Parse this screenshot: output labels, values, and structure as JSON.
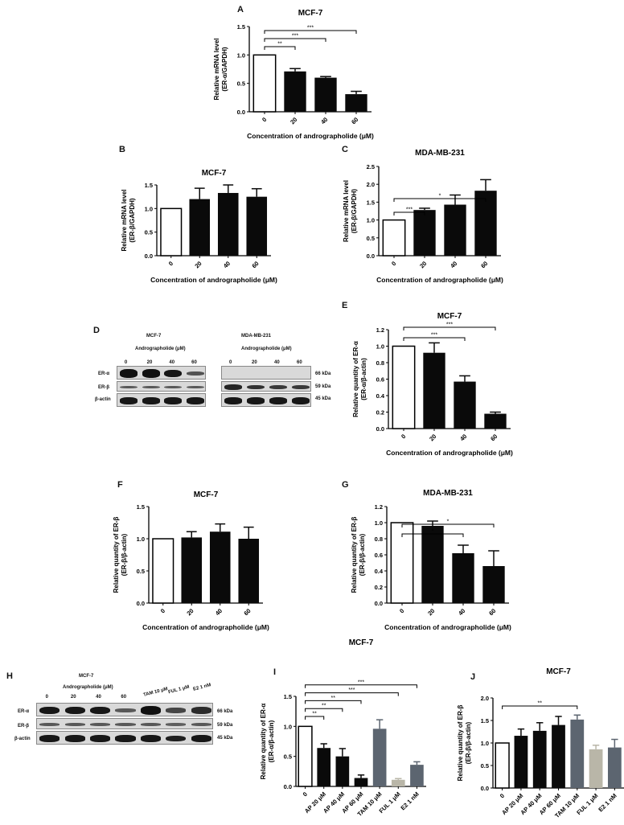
{
  "panel_letters": {
    "A": "A",
    "B": "B",
    "C": "C",
    "D": "D",
    "E": "E",
    "F": "F",
    "G": "G",
    "H": "H",
    "I": "I",
    "J": "J"
  },
  "colors": {
    "white": "#ffffff",
    "black": "#0a0a0a",
    "gray": "#5c6570",
    "light_gray": "#b9b6a8"
  },
  "chart_data": [
    {
      "id": "A",
      "type": "bar",
      "title": "MCF-7",
      "ylabel": [
        "Relative mRNA level",
        "(ER-α/GAPDH)"
      ],
      "xlabel": "Concentration of andrographolide (μM)",
      "categories": [
        "0",
        "20",
        "40",
        "60"
      ],
      "values": [
        1.0,
        0.71,
        0.6,
        0.31
      ],
      "errors": [
        0,
        0.05,
        0.02,
        0.05
      ],
      "fills": [
        "white",
        "black",
        "black",
        "black"
      ],
      "ylim": [
        0,
        1.5
      ],
      "yticks": [
        "0.0",
        "0.5",
        "1.0",
        "1.5"
      ],
      "significance": [
        {
          "from": 0,
          "to": 1,
          "label": "**"
        },
        {
          "from": 0,
          "to": 2,
          "label": "***"
        },
        {
          "from": 0,
          "to": 3,
          "label": "***"
        }
      ]
    },
    {
      "id": "B",
      "type": "bar",
      "title": "MCF-7",
      "ylabel": [
        "Relative mRNA level",
        "(ER-β/GAPDH)"
      ],
      "xlabel": "Concentration of andrographolide (μM)",
      "categories": [
        "0",
        "20",
        "40",
        "60"
      ],
      "values": [
        1.0,
        1.2,
        1.33,
        1.25
      ],
      "errors": [
        0,
        0.23,
        0.17,
        0.17
      ],
      "fills": [
        "white",
        "black",
        "black",
        "black"
      ],
      "ylim": [
        0,
        1.5
      ],
      "yticks": [
        "0.0",
        "0.5",
        "1.0",
        "1.5"
      ],
      "significance": []
    },
    {
      "id": "C",
      "type": "bar",
      "title": "MDA-MB-231",
      "ylabel": [
        "Relative mRNA level",
        "(ER-β/GAPDH)"
      ],
      "xlabel": "Concentration of andrographolide (μM)",
      "categories": [
        "0",
        "20",
        "40",
        "60"
      ],
      "values": [
        1.0,
        1.28,
        1.43,
        1.82
      ],
      "errors": [
        0,
        0.05,
        0.27,
        0.31
      ],
      "fills": [
        "white",
        "black",
        "black",
        "black"
      ],
      "ylim": [
        0,
        2.5
      ],
      "yticks": [
        "0.0",
        "0.5",
        "1.0",
        "1.5",
        "2.0",
        "2.5"
      ],
      "significance": [
        {
          "from": 0,
          "to": 1,
          "label": "***"
        },
        {
          "from": 0,
          "to": 3,
          "label": "*"
        }
      ]
    },
    {
      "id": "E",
      "type": "bar",
      "title": "MCF-7",
      "ylabel": [
        "Relative quantity of ER-α",
        "(ER-α/β-actin)"
      ],
      "xlabel": "Concentration of andrographolide (μM)",
      "categories": [
        "0",
        "20",
        "40",
        "60"
      ],
      "values": [
        1.0,
        0.92,
        0.57,
        0.18
      ],
      "errors": [
        0,
        0.12,
        0.07,
        0.02
      ],
      "fills": [
        "white",
        "black",
        "black",
        "black"
      ],
      "ylim": [
        0,
        1.2
      ],
      "yticks": [
        "0.0",
        "0.2",
        "0.4",
        "0.6",
        "0.8",
        "1.0",
        "1.2"
      ],
      "significance": [
        {
          "from": 0,
          "to": 2,
          "label": "***"
        },
        {
          "from": 0,
          "to": 3,
          "label": "***"
        }
      ]
    },
    {
      "id": "F",
      "type": "bar",
      "title": "MCF-7",
      "ylabel": [
        "Relative quantity of ER-β",
        "(ER-β/β-actin)"
      ],
      "xlabel": "Concentration of andrographolide (μM)",
      "categories": [
        "0",
        "20",
        "40",
        "60"
      ],
      "values": [
        1.0,
        1.02,
        1.11,
        1.0
      ],
      "errors": [
        0,
        0.09,
        0.12,
        0.18
      ],
      "fills": [
        "white",
        "black",
        "black",
        "black"
      ],
      "ylim": [
        0,
        1.5
      ],
      "yticks": [
        "0.0",
        "0.5",
        "1.0",
        "1.5"
      ],
      "significance": []
    },
    {
      "id": "G",
      "type": "bar",
      "title": "MDA-MB-231",
      "ylabel": [
        "Relative quantity of ER-β",
        "(ER-β/β-actin)"
      ],
      "xlabel": "Concentration of andrographolide (μM)",
      "categories": [
        "0",
        "20",
        "40",
        "60"
      ],
      "values": [
        1.0,
        0.96,
        0.62,
        0.46
      ],
      "errors": [
        0,
        0.06,
        0.1,
        0.19
      ],
      "fills": [
        "white",
        "black",
        "black",
        "black"
      ],
      "ylim": [
        0,
        1.2
      ],
      "yticks": [
        "0.0",
        "0.2",
        "0.4",
        "0.6",
        "0.8",
        "1.0",
        "1.2"
      ],
      "significance": [
        {
          "from": 0,
          "to": 2,
          "label": "*"
        },
        {
          "from": 0,
          "to": 3,
          "label": "*"
        }
      ]
    },
    {
      "id": "I",
      "type": "bar",
      "title": "MCF-7",
      "ylabel": [
        "Relative quantity of ER-α",
        "(ER-α/β-actin)"
      ],
      "xlabel": "",
      "categories": [
        "0",
        "AP 20 μM",
        "AP 40 μM",
        "AP 60 μM",
        "TAM 10 μM",
        "FUL 1 μM",
        "E2 1 nM"
      ],
      "values": [
        1.0,
        0.64,
        0.5,
        0.14,
        0.96,
        0.11,
        0.36
      ],
      "errors": [
        0,
        0.07,
        0.13,
        0.05,
        0.15,
        0.02,
        0.05
      ],
      "fills": [
        "white",
        "black",
        "black",
        "black",
        "gray",
        "light_gray",
        "gray"
      ],
      "ylim": [
        0,
        1.5
      ],
      "yticks": [
        "0.0",
        "0.5",
        "1.0",
        "1.5"
      ],
      "significance": [
        {
          "from": 0,
          "to": 1,
          "label": "**"
        },
        {
          "from": 0,
          "to": 2,
          "label": "**"
        },
        {
          "from": 0,
          "to": 3,
          "label": "**"
        },
        {
          "from": 0,
          "to": 5,
          "label": "***"
        },
        {
          "from": 0,
          "to": 6,
          "label": "***"
        }
      ]
    },
    {
      "id": "J",
      "type": "bar",
      "title": "MCF-7",
      "ylabel": [
        "Relative quantity of ER-β",
        "(ER-β/β-actin)"
      ],
      "xlabel": "",
      "categories": [
        "0",
        "AP 20 μM",
        "AP 40 μM",
        "AP 60 μM",
        "TAM 10 μM",
        "FUL 1 μM",
        "E2 1 nM"
      ],
      "values": [
        1.0,
        1.16,
        1.27,
        1.4,
        1.52,
        0.86,
        0.9
      ],
      "errors": [
        0,
        0.15,
        0.18,
        0.19,
        0.1,
        0.09,
        0.18
      ],
      "fills": [
        "white",
        "black",
        "black",
        "black",
        "gray",
        "light_gray",
        "gray"
      ],
      "ylim": [
        0,
        2.0
      ],
      "yticks": [
        "0.0",
        "0.5",
        "1.0",
        "1.5",
        "2.0"
      ],
      "significance": [
        {
          "from": 0,
          "to": 4,
          "label": "**"
        }
      ]
    }
  ],
  "blot_D": {
    "left": {
      "title": "MCF-7",
      "treatment": "Andrographolide (μM)",
      "lanes": [
        "0",
        "20",
        "40",
        "60"
      ],
      "bands": {
        "er_alpha": [
          1,
          1,
          0.95,
          0.5
        ],
        "er_beta": [
          0.45,
          0.45,
          0.45,
          0.45
        ],
        "beta_actin": [
          0.95,
          0.95,
          0.95,
          0.95
        ]
      }
    },
    "right": {
      "title": "MDA-MB-231",
      "treatment": "Andrographolide (μM)",
      "lanes": [
        "0",
        "20",
        "40",
        "60"
      ],
      "bands": {
        "er_alpha": [
          0,
          0,
          0,
          0
        ],
        "er_beta": [
          0.85,
          0.75,
          0.7,
          0.7
        ],
        "beta_actin": [
          0.95,
          0.95,
          0.95,
          0.95
        ]
      }
    },
    "rows": [
      "ER-α",
      "ER-β",
      "β-actin"
    ],
    "sizes": [
      "66 kDa",
      "59 kDa",
      "45 kDa"
    ]
  },
  "blot_H": {
    "title": "MCF-7",
    "treatment": "Andrographolide (μM)",
    "lanes": [
      "0",
      "20",
      "40",
      "60",
      "TAM 10 μM",
      "FUL 1 μM",
      "E2 1 nM"
    ],
    "rows": [
      "ER-α",
      "ER-β",
      "β-actin"
    ],
    "sizes": [
      "66 kDa",
      "59 kDa",
      "45 kDa"
    ],
    "bands": {
      "er_alpha": [
        0.95,
        0.95,
        0.95,
        0.45,
        1,
        0.6,
        0.8
      ],
      "er_beta": [
        0.45,
        0.45,
        0.45,
        0.45,
        0.45,
        0.4,
        0.45
      ],
      "beta_actin": [
        0.95,
        0.95,
        0.95,
        0.95,
        0.95,
        0.9,
        0.95
      ]
    }
  }
}
